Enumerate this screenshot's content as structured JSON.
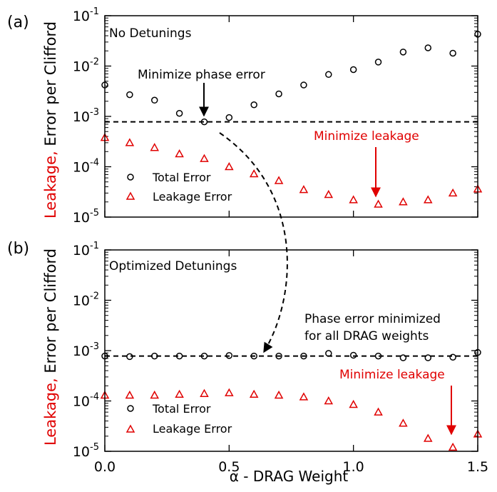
{
  "chart_data": [
    {
      "type": "scatter",
      "panel_label": "(a)",
      "title": "No Detunings",
      "ylabel_red": "Leakage,",
      "ylabel_black": "Error per Clifford",
      "xlim": [
        0,
        1.5
      ],
      "ylim": [
        1e-05,
        0.1
      ],
      "yscale": "log",
      "x_ticks": [],
      "y_ticks": [
        {
          "value": 1e-05,
          "base": "10",
          "exp": "-5"
        },
        {
          "value": 0.0001,
          "base": "10",
          "exp": "-4"
        },
        {
          "value": 0.001,
          "base": "10",
          "exp": "-3"
        },
        {
          "value": 0.01,
          "base": "10",
          "exp": "-2"
        },
        {
          "value": 0.1,
          "base": "10",
          "exp": "-1"
        }
      ],
      "hline": 0.00078,
      "legend_placement": "lower-left",
      "series": [
        {
          "name": "Total Error",
          "marker": "circle",
          "color": "#000000",
          "x": [
            0.0,
            0.1,
            0.2,
            0.3,
            0.4,
            0.5,
            0.6,
            0.7,
            0.8,
            0.9,
            1.0,
            1.1,
            1.2,
            1.3,
            1.4,
            1.5
          ],
          "y": [
            0.0042,
            0.0027,
            0.0021,
            0.00115,
            0.00078,
            0.00095,
            0.0017,
            0.0028,
            0.0042,
            0.0068,
            0.0085,
            0.012,
            0.019,
            0.023,
            0.018,
            0.043
          ]
        },
        {
          "name": "Leakage Error",
          "marker": "triangle",
          "color": "#e00000",
          "x": [
            0.0,
            0.1,
            0.2,
            0.3,
            0.4,
            0.5,
            0.6,
            0.7,
            0.8,
            0.9,
            1.0,
            1.1,
            1.2,
            1.3,
            1.4,
            1.5
          ],
          "y": [
            0.00038,
            0.0003,
            0.00024,
            0.00018,
            0.000145,
            0.0001,
            7.2e-05,
            5.3e-05,
            3.5e-05,
            2.8e-05,
            2.2e-05,
            1.8e-05,
            2e-05,
            2.2e-05,
            3e-05,
            3.6e-05
          ]
        }
      ],
      "annotations": [
        {
          "text": "Minimize phase error",
          "color": "#000000",
          "arrow_to": [
            0.4,
            0.00078
          ]
        },
        {
          "text": "Minimize leakage",
          "color": "#e00000",
          "arrow_to": [
            1.1,
            1.8e-05
          ]
        }
      ]
    },
    {
      "type": "scatter",
      "panel_label": "(b)",
      "title": "Optimized Detunings",
      "ylabel_red": "Leakage,",
      "ylabel_black": "Error per Clifford",
      "xlabel": "α - DRAG Weight",
      "xlim": [
        0,
        1.5
      ],
      "ylim": [
        1e-05,
        0.1
      ],
      "yscale": "log",
      "x_ticks": [
        {
          "value": 0.0,
          "label": "0.0"
        },
        {
          "value": 0.5,
          "label": "0.5"
        },
        {
          "value": 1.0,
          "label": "1.0"
        },
        {
          "value": 1.5,
          "label": "1.5"
        }
      ],
      "y_ticks": [
        {
          "value": 1e-05,
          "base": "10",
          "exp": "-5"
        },
        {
          "value": 0.0001,
          "base": "10",
          "exp": "-4"
        },
        {
          "value": 0.001,
          "base": "10",
          "exp": "-3"
        },
        {
          "value": 0.01,
          "base": "10",
          "exp": "-2"
        },
        {
          "value": 0.1,
          "base": "10",
          "exp": "-1"
        }
      ],
      "hline": 0.00078,
      "legend_placement": "lower-left",
      "series": [
        {
          "name": "Total Error",
          "marker": "circle",
          "color": "#000000",
          "x": [
            0.0,
            0.1,
            0.2,
            0.3,
            0.4,
            0.5,
            0.6,
            0.7,
            0.8,
            0.9,
            1.0,
            1.1,
            1.2,
            1.3,
            1.4,
            1.5
          ],
          "y": [
            0.00078,
            0.00076,
            0.00078,
            0.00078,
            0.00078,
            0.0008,
            0.00078,
            0.00078,
            0.00078,
            0.00088,
            0.00081,
            0.00078,
            0.00072,
            0.00072,
            0.00074,
            0.00092
          ]
        },
        {
          "name": "Leakage Error",
          "marker": "triangle",
          "color": "#e00000",
          "x": [
            0.0,
            0.1,
            0.2,
            0.3,
            0.4,
            0.5,
            0.6,
            0.7,
            0.8,
            0.9,
            1.0,
            1.1,
            1.2,
            1.3,
            1.4,
            1.5
          ],
          "y": [
            0.00013,
            0.00013,
            0.00013,
            0.000135,
            0.00014,
            0.000145,
            0.000135,
            0.00013,
            0.00012,
            0.0001,
            8.5e-05,
            6e-05,
            3.6e-05,
            1.8e-05,
            1.2e-05,
            2.2e-05
          ]
        }
      ],
      "annotations": [
        {
          "text_lines": [
            "Phase error minimized",
            "for all DRAG weights"
          ],
          "color": "#000000"
        },
        {
          "text": "Minimize leakage",
          "color": "#e00000",
          "arrow_to": [
            1.4,
            1.2e-05
          ]
        }
      ]
    }
  ]
}
